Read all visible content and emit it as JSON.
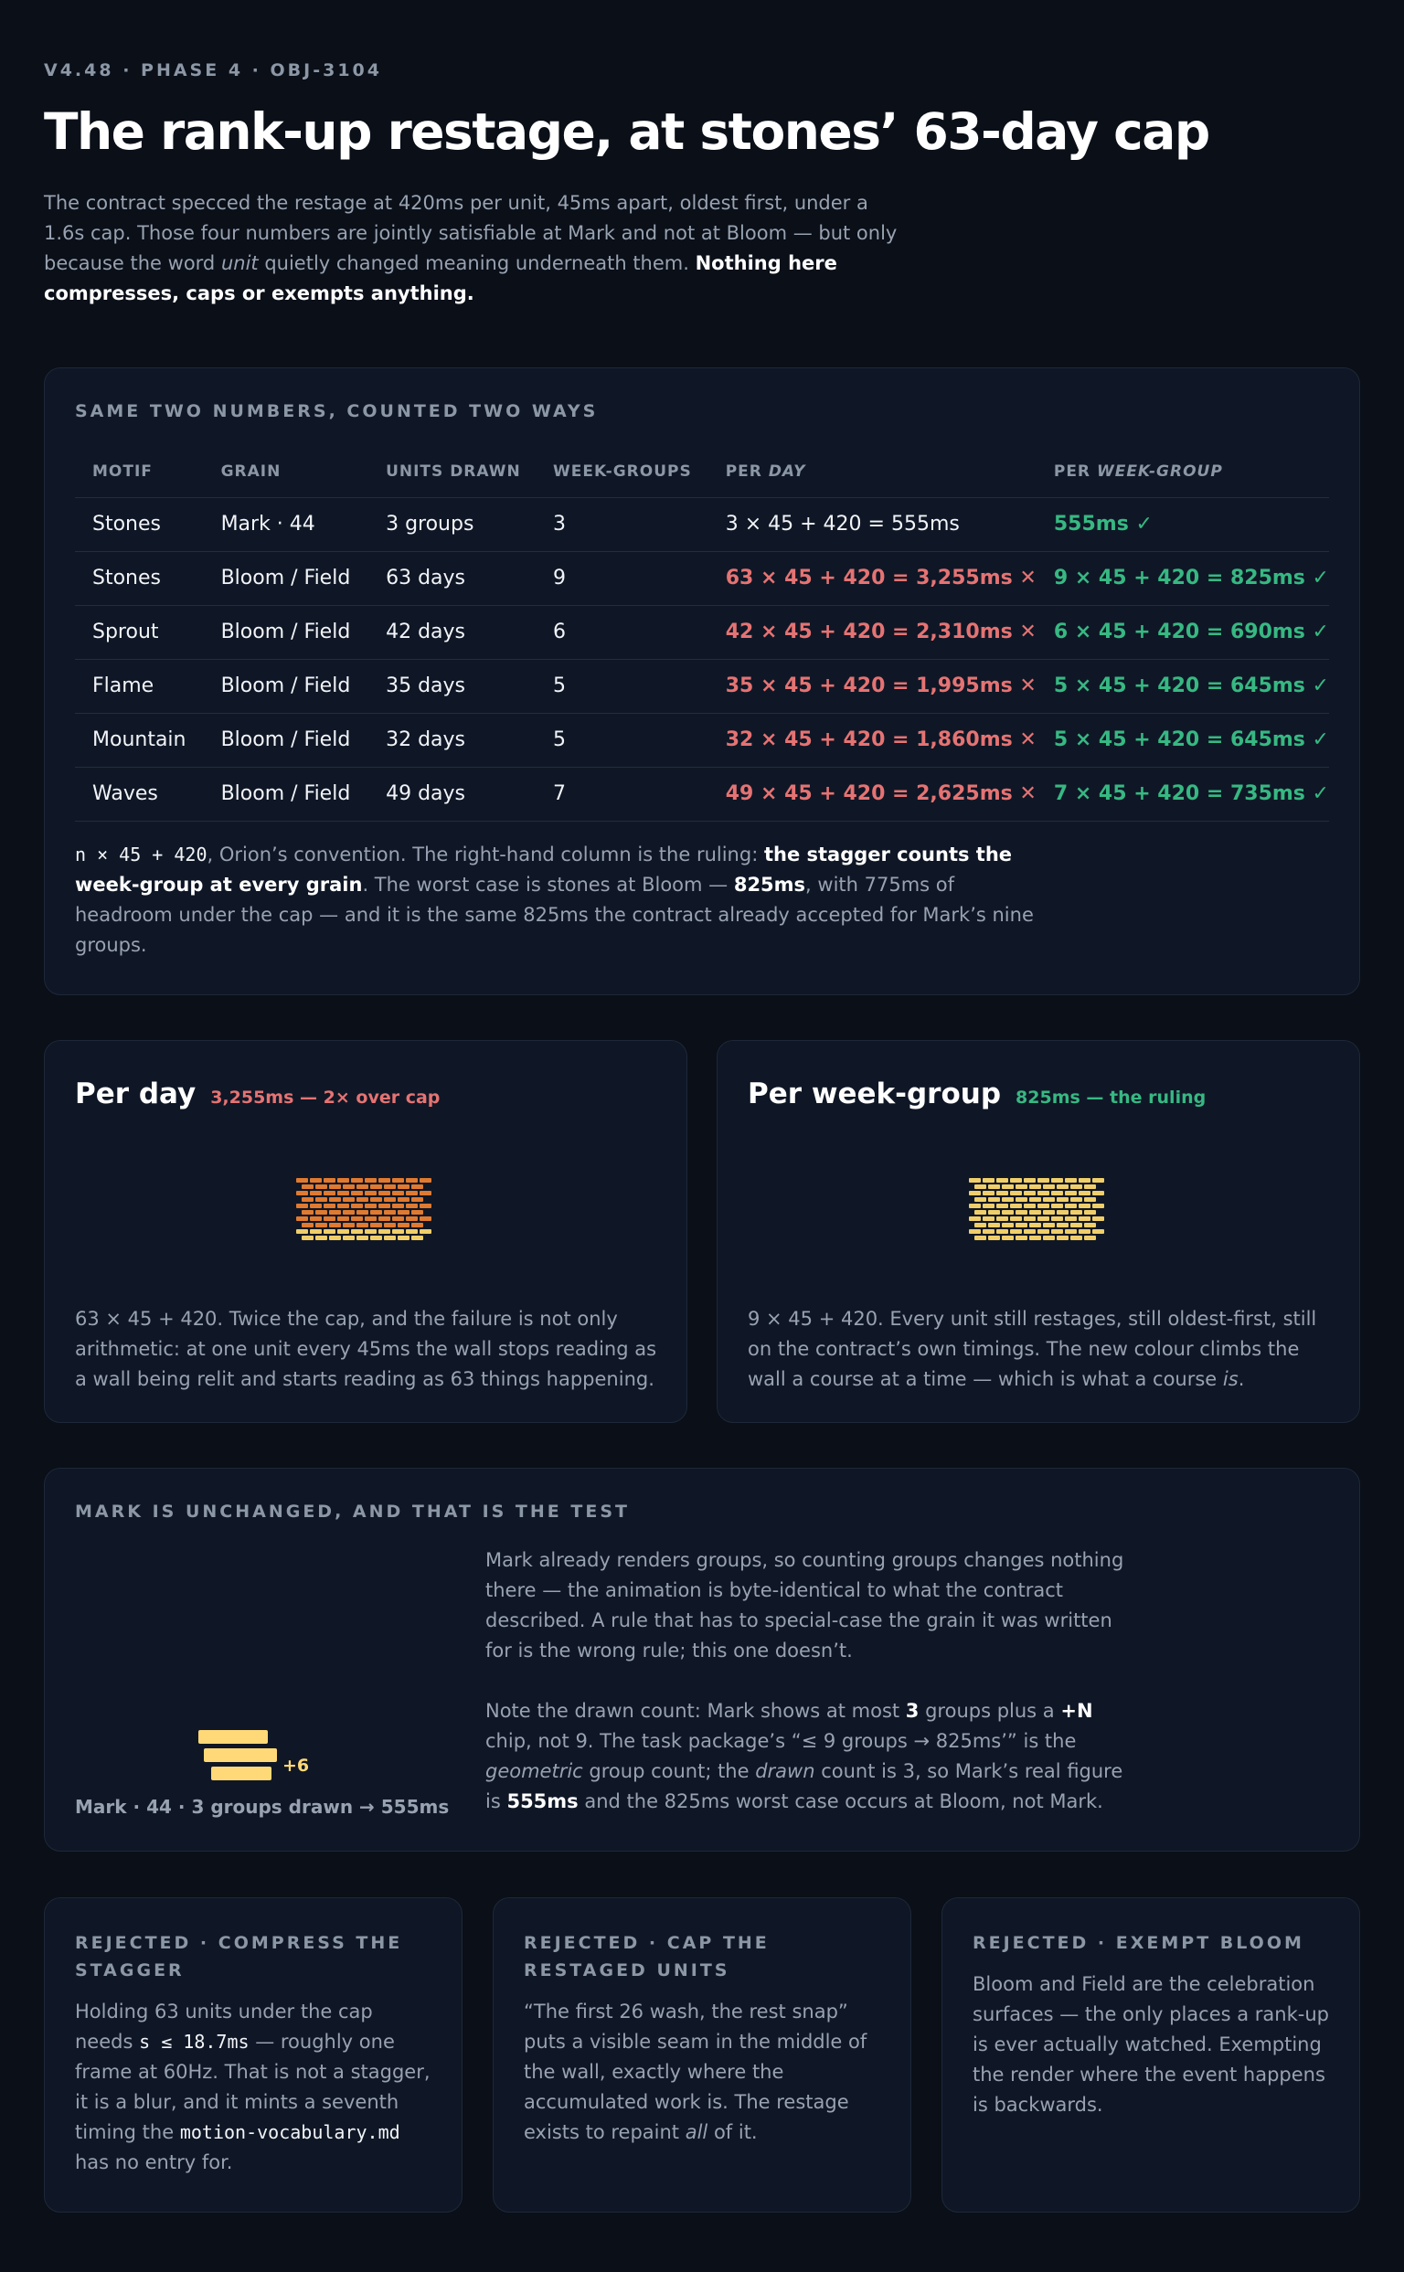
{
  "header": {
    "eyebrow": "V4.48 · PHASE 4 · OBJ-3104",
    "title": "The rank-up restage, at stones’ 63-day cap",
    "lede_a": "The contract specced the restage at 420ms per unit, 45ms apart, oldest first, under a 1.6s cap. Those four numbers are jointly satisfiable at Mark and not at Bloom — but only because the word ",
    "lede_em": "unit",
    "lede_b": " quietly changed meaning underneath them. ",
    "lede_strong": "Nothing here compresses, caps or exempts anything."
  },
  "table_card": {
    "heading": "SAME TWO NUMBERS, COUNTED TWO WAYS",
    "columns": [
      "MOTIF",
      "GRAIN",
      "UNITS DRAWN",
      "WEEK-GROUPS",
      "PER ",
      "DAY",
      "PER ",
      "WEEK-GROUP"
    ],
    "rows": [
      {
        "motif": "Stones",
        "grain": "Mark · 44",
        "units": "3 groups",
        "groups": "3",
        "per_day": "3 × 45 + 420 = 555ms",
        "per_day_status": "neutral",
        "per_group": "555ms ✓"
      },
      {
        "motif": "Stones",
        "grain": "Bloom / Field",
        "units": "63 days",
        "groups": "9",
        "per_day": "63 × 45 + 420 = 3,255ms ✕",
        "per_day_status": "bad",
        "per_group": "9 × 45 + 420 = 825ms ✓"
      },
      {
        "motif": "Sprout",
        "grain": "Bloom / Field",
        "units": "42 days",
        "groups": "6",
        "per_day": "42 × 45 + 420 = 2,310ms ✕",
        "per_day_status": "bad",
        "per_group": "6 × 45 + 420 = 690ms ✓"
      },
      {
        "motif": "Flame",
        "grain": "Bloom / Field",
        "units": "35 days",
        "groups": "5",
        "per_day": "35 × 45 + 420 = 1,995ms ✕",
        "per_day_status": "bad",
        "per_group": "5 × 45 + 420 = 645ms ✓"
      },
      {
        "motif": "Mountain",
        "grain": "Bloom / Field",
        "units": "32 days",
        "groups": "5",
        "per_day": "32 × 45 + 420 = 1,860ms ✕",
        "per_day_status": "bad",
        "per_group": "5 × 45 + 420 = 645ms ✓"
      },
      {
        "motif": "Waves",
        "grain": "Bloom / Field",
        "units": "49 days",
        "groups": "7",
        "per_day": "49 × 45 + 420 = 2,625ms ✕",
        "per_day_status": "bad",
        "per_group": "7 × 45 + 420 = 735ms ✓"
      }
    ],
    "note_code": "n × 45 + 420",
    "note_a": ", Orion’s convention. The right-hand column is the ruling: ",
    "note_strong": "the stagger counts the week-group at every grain",
    "note_b": ". The worst case is stones at Bloom — ",
    "note_strong2": "825ms",
    "note_c": ", with 775ms of headroom under the cap — and it is the same 825ms the contract already accepted for Mark’s nine groups."
  },
  "per_day": {
    "title": "Per day",
    "badge": "3,255ms — 2× over cap",
    "text": "63 × 45 + 420. Twice the cap, and the failure is not only arithmetic: at one unit every 45ms the wall stops reading as a wall being relit and starts reading as 63 things happening."
  },
  "per_week": {
    "title": "Per week-group",
    "badge": "825ms — the ruling",
    "text_a": "9 × 45 + 420. Every unit still restages, still oldest-first, still on the contract’s own timings. The new colour climbs the wall a course at a time — which is what a course ",
    "text_em": "is",
    "text_b": "."
  },
  "mark": {
    "heading": "MARK IS UNCHANGED, AND THAT IS THE TEST",
    "chip": "+6",
    "caption": "Mark · 44 · 3 groups drawn → 555ms",
    "p1": "Mark already renders groups, so counting groups changes nothing there — the animation is byte-identical to what the contract described. A rule that has to special-case the grain it was written for is the wrong rule; this one doesn’t.",
    "p2_a": "Note the drawn count: Mark shows at most ",
    "p2_b1": "3",
    "p2_c": " groups plus a ",
    "p2_b2": "+N",
    "p2_d": " chip, not 9. The task package’s “≤ 9 groups → 825ms’” is the ",
    "p2_em1": "geometric",
    "p2_e": " group count; the ",
    "p2_em2": "drawn",
    "p2_f": " count is 3, so Mark’s real figure is ",
    "p2_b3": "555ms",
    "p2_g": " and the 825ms worst case occurs at Bloom, not Mark."
  },
  "rejected": [
    {
      "heading": "REJECTED · COMPRESS THE STAGGER",
      "a": "Holding 63 units under the cap needs ",
      "code1": "s ≤ 18.7ms",
      "b": " — roughly one frame at 60Hz. That is not a stagger, it is a blur, and it mints a seventh timing the ",
      "code2": "motion-vocabulary.md",
      "c": " has no entry for."
    },
    {
      "heading": "REJECTED · CAP THE RESTAGED UNITS",
      "a": "“The first 26 wash, the rest snap” puts a visible seam in the middle of the wall, exactly where the accumulated work is. The restage exists to repaint ",
      "em": "all",
      "b": " of it."
    },
    {
      "heading": "REJECTED · EXEMPT BLOOM",
      "a": "Bloom and Field are the celebration surfaces — the only places a rank-up is ever actually watched. Exempting the render where the event happens is backwards."
    }
  ],
  "colors": {
    "bad": "#e57373",
    "good": "#37b882",
    "brick_old": "#e07a30",
    "brick_new": "#f0cf6a",
    "mark_brick": "#ffd977"
  }
}
